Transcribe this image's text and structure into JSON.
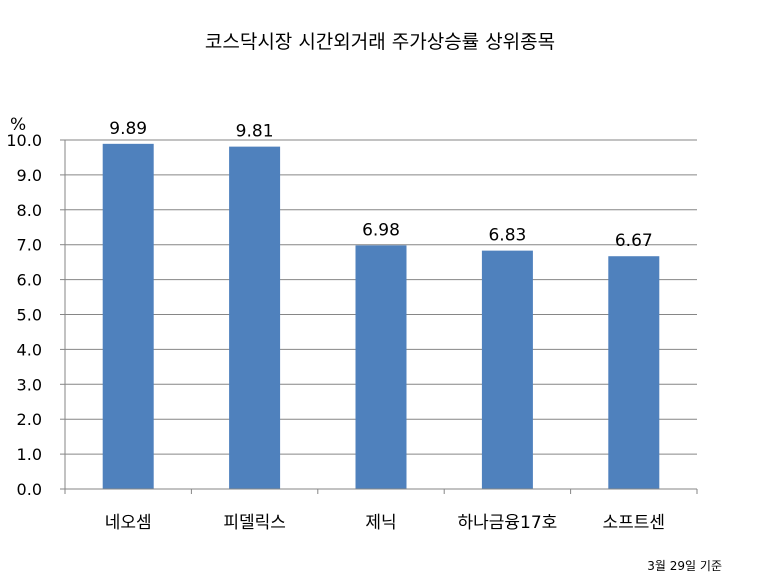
{
  "chart_data": {
    "type": "bar",
    "title": "코스닥시장 시간외거래  주가상승률 상위종목",
    "ylabel": "%",
    "xlabel": "",
    "categories": [
      "네오셈",
      "피델릭스",
      "제닉",
      "하나금융17호",
      "소프트센"
    ],
    "values": [
      9.89,
      9.81,
      6.98,
      6.83,
      6.67
    ],
    "value_labels": [
      "9.89",
      "9.81",
      "6.98",
      "6.83",
      "6.67"
    ],
    "ylim": [
      0,
      10
    ],
    "yticks": [
      "0.0",
      "1.0",
      "2.0",
      "3.0",
      "4.0",
      "5.0",
      "6.0",
      "7.0",
      "8.0",
      "9.0",
      "10.0"
    ],
    "grid": true,
    "legend": "none",
    "bar_color": "#4F81BD",
    "note": "3월 29일 기준"
  }
}
